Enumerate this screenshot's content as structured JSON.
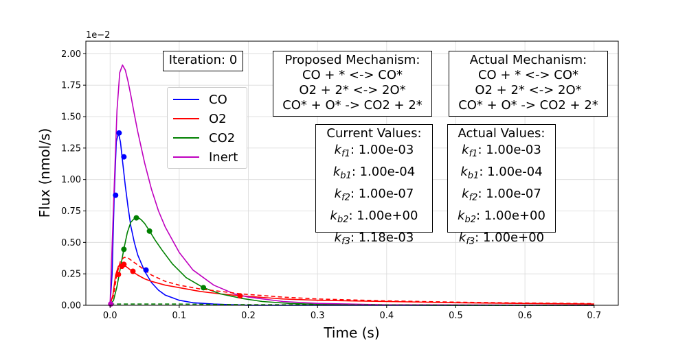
{
  "chart_data": {
    "type": "line",
    "xlabel": "Time (s)",
    "ylabel": "Flux (nmol/s)",
    "y_scale_label": "1e−2",
    "xlim": [
      -0.035,
      0.735
    ],
    "ylim": [
      0,
      2.1
    ],
    "xticks": [
      "0.0",
      "0.1",
      "0.2",
      "0.3",
      "0.4",
      "0.5",
      "0.6",
      "0.7"
    ],
    "xtick_values": [
      0,
      0.1,
      0.2,
      0.3,
      0.4,
      0.5,
      0.6,
      0.7
    ],
    "yticks": [
      "0.00",
      "0.25",
      "0.50",
      "0.75",
      "1.00",
      "1.25",
      "1.50",
      "1.75",
      "2.00"
    ],
    "ytick_values": [
      0,
      0.25,
      0.5,
      0.75,
      1.0,
      1.25,
      1.5,
      1.75,
      2.0
    ],
    "grid": true,
    "legend_position": "upper-middle-left",
    "series": [
      {
        "name": "CO",
        "color": "#0000ff",
        "style": "solid",
        "x": [
          0,
          0.003,
          0.006,
          0.009,
          0.012,
          0.015,
          0.018,
          0.022,
          0.026,
          0.03,
          0.035,
          0.04,
          0.05,
          0.06,
          0.07,
          0.08,
          0.1,
          0.12,
          0.15,
          0.2,
          0.3,
          0.7
        ],
        "y": [
          0,
          0.25,
          0.88,
          1.3,
          1.37,
          1.3,
          1.15,
          0.95,
          0.78,
          0.63,
          0.5,
          0.4,
          0.27,
          0.18,
          0.12,
          0.08,
          0.04,
          0.02,
          0.01,
          0,
          0,
          0
        ]
      },
      {
        "name": "O2",
        "color": "#ff0000",
        "style": "solid",
        "x": [
          0,
          0.004,
          0.008,
          0.012,
          0.016,
          0.02,
          0.025,
          0.032,
          0.04,
          0.05,
          0.06,
          0.08,
          0.1,
          0.13,
          0.16,
          0.19,
          0.25,
          0.3,
          0.4,
          0.5,
          0.6,
          0.7
        ],
        "y": [
          0,
          0.08,
          0.24,
          0.31,
          0.33,
          0.32,
          0.3,
          0.27,
          0.24,
          0.21,
          0.19,
          0.16,
          0.14,
          0.11,
          0.09,
          0.075,
          0.05,
          0.04,
          0.03,
          0.02,
          0.015,
          0.01
        ]
      },
      {
        "name": "CO2",
        "color": "#008000",
        "style": "solid",
        "x": [
          0,
          0.005,
          0.01,
          0.015,
          0.02,
          0.025,
          0.03,
          0.035,
          0.04,
          0.045,
          0.05,
          0.056,
          0.065,
          0.075,
          0.09,
          0.11,
          0.135,
          0.16,
          0.19,
          0.22,
          0.26,
          0.3,
          0.4,
          0.5,
          0.7
        ],
        "y": [
          0,
          0.04,
          0.15,
          0.3,
          0.45,
          0.58,
          0.66,
          0.69,
          0.7,
          0.68,
          0.65,
          0.6,
          0.52,
          0.44,
          0.33,
          0.22,
          0.14,
          0.09,
          0.055,
          0.03,
          0.015,
          0.008,
          0.002,
          0,
          0
        ]
      },
      {
        "name": "Inert",
        "color": "#bf00bf",
        "style": "solid",
        "x": [
          0,
          0.005,
          0.01,
          0.014,
          0.018,
          0.022,
          0.026,
          0.03,
          0.035,
          0.04,
          0.05,
          0.06,
          0.07,
          0.08,
          0.1,
          0.12,
          0.15,
          0.18,
          0.2,
          0.25,
          0.3,
          0.4,
          0.7
        ],
        "y": [
          0,
          0.8,
          1.55,
          1.85,
          1.91,
          1.87,
          1.78,
          1.67,
          1.52,
          1.38,
          1.13,
          0.92,
          0.75,
          0.62,
          0.42,
          0.28,
          0.16,
          0.09,
          0.065,
          0.03,
          0.015,
          0.004,
          0
        ]
      },
      {
        "name": "",
        "color": "#ff0000",
        "style": "dashed",
        "x": [
          0,
          0.005,
          0.01,
          0.015,
          0.02,
          0.025,
          0.03,
          0.035,
          0.04,
          0.05,
          0.06,
          0.08,
          0.1,
          0.13,
          0.16,
          0.19,
          0.25,
          0.3,
          0.4,
          0.5,
          0.6,
          0.7
        ],
        "y": [
          0,
          0.08,
          0.25,
          0.35,
          0.38,
          0.38,
          0.36,
          0.34,
          0.32,
          0.28,
          0.24,
          0.19,
          0.16,
          0.13,
          0.11,
          0.09,
          0.065,
          0.05,
          0.035,
          0.025,
          0.018,
          0.013
        ]
      },
      {
        "name": "",
        "color": "#008000",
        "style": "dashed",
        "x": [
          0,
          0.1,
          0.2,
          0.3,
          0.4,
          0.5,
          0.6,
          0.7
        ],
        "y": [
          0.01,
          0.01,
          0.005,
          0.003,
          0.002,
          0.001,
          0,
          0
        ]
      }
    ],
    "markers": [
      {
        "series": "CO",
        "color": "#0000ff",
        "points": [
          [
            0.008,
            0.875
          ],
          [
            0.013,
            1.37
          ],
          [
            0.02,
            1.18
          ],
          [
            0.052,
            0.28
          ]
        ]
      },
      {
        "series": "O2",
        "color": "#ff0000",
        "points": [
          [
            0.012,
            0.245
          ],
          [
            0.017,
            0.31
          ],
          [
            0.02,
            0.325
          ],
          [
            0.033,
            0.27
          ],
          [
            0.188,
            0.075
          ]
        ]
      },
      {
        "series": "CO2",
        "color": "#008000",
        "points": [
          [
            0.02,
            0.445
          ],
          [
            0.038,
            0.695
          ],
          [
            0.057,
            0.59
          ],
          [
            0.135,
            0.14
          ]
        ]
      },
      {
        "series": "Inert",
        "color": "#bf00bf",
        "points": [
          [
            0.001,
            0.01
          ]
        ]
      }
    ]
  },
  "annotations": {
    "iteration": "Iteration: 0",
    "proposed": {
      "title": "Proposed Mechanism:",
      "lines": [
        "CO + * <-> CO*",
        "O2 + 2* <-> 2O*",
        "CO* + O* -> CO2 + 2*"
      ]
    },
    "actual": {
      "title": "Actual Mechanism:",
      "lines": [
        "CO + * <-> CO*",
        "O2 + 2* <-> 2O*",
        "CO* + O* -> CO2 + 2*"
      ]
    },
    "current_values": {
      "title": "Current Values:",
      "items": [
        {
          "k": "k",
          "sub": "f1",
          "value": ": 1.00e-03"
        },
        {
          "k": "k",
          "sub": "b1",
          "value": ": 1.00e-04"
        },
        {
          "k": "k",
          "sub": "f2",
          "value": ": 1.00e-07"
        },
        {
          "k": "k",
          "sub": "b2",
          "value": ": 1.00e+00"
        },
        {
          "k": "k",
          "sub": "f3",
          "value": ": 1.18e-03"
        }
      ]
    },
    "actual_values": {
      "title": "Actual Values:",
      "items": [
        {
          "k": "k",
          "sub": "f1",
          "value": ": 1.00e-03"
        },
        {
          "k": "k",
          "sub": "b1",
          "value": ": 1.00e-04"
        },
        {
          "k": "k",
          "sub": "f2",
          "value": ": 1.00e-07"
        },
        {
          "k": "k",
          "sub": "b2",
          "value": ": 1.00e+00"
        },
        {
          "k": "k",
          "sub": "f3",
          "value": ": 1.00e+00"
        }
      ]
    }
  },
  "legend": {
    "items": [
      {
        "label": "CO",
        "color": "#0000ff"
      },
      {
        "label": "O2",
        "color": "#ff0000"
      },
      {
        "label": "CO2",
        "color": "#008000"
      },
      {
        "label": "Inert",
        "color": "#bf00bf"
      }
    ]
  }
}
